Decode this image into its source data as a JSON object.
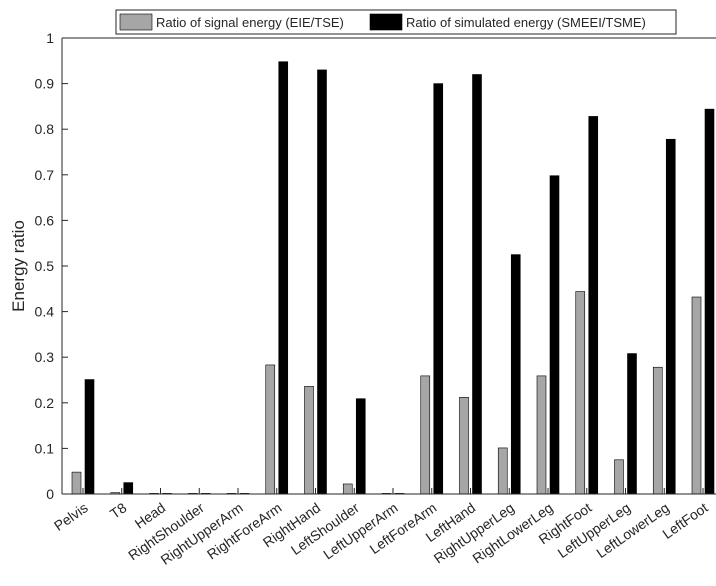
{
  "chart_data": {
    "type": "bar",
    "title": "",
    "xlabel": "",
    "ylabel": "Energy ratio",
    "ylim": [
      0,
      1
    ],
    "yticks": [
      "0",
      "0.1",
      "0.2",
      "0.3",
      "0.4",
      "0.5",
      "0.6",
      "0.7",
      "0.8",
      "0.9",
      "1"
    ],
    "grid": false,
    "legend_position": "top",
    "categories": [
      "Pelvis",
      "T8",
      "Head",
      "RightShoulder",
      "RightUpperArm",
      "RightForeArm",
      "RightHand",
      "LeftShoulder",
      "LeftUpperArm",
      "LeftForeArm",
      "LeftHand",
      "RightUpperLeg",
      "RightLowerLeg",
      "RightFoot",
      "LeftUpperLeg",
      "LeftLowerLeg",
      "LeftFoot"
    ],
    "series": [
      {
        "name": "Ratio of signal energy (EIE/TSE)",
        "color": "#a6a6a6",
        "values": [
          0.048,
          0.003,
          0.0,
          0.0,
          0.0,
          0.283,
          0.236,
          0.022,
          0.0,
          0.259,
          0.212,
          0.101,
          0.259,
          0.444,
          0.075,
          0.278,
          0.432
        ]
      },
      {
        "name": "Ratio of simulated energy (SMEEI/TSME)",
        "color": "#000000",
        "values": [
          0.251,
          0.025,
          0.0,
          0.0,
          0.0,
          0.948,
          0.93,
          0.209,
          0.0,
          0.9,
          0.92,
          0.525,
          0.698,
          0.828,
          0.308,
          0.778,
          0.844
        ]
      }
    ]
  }
}
